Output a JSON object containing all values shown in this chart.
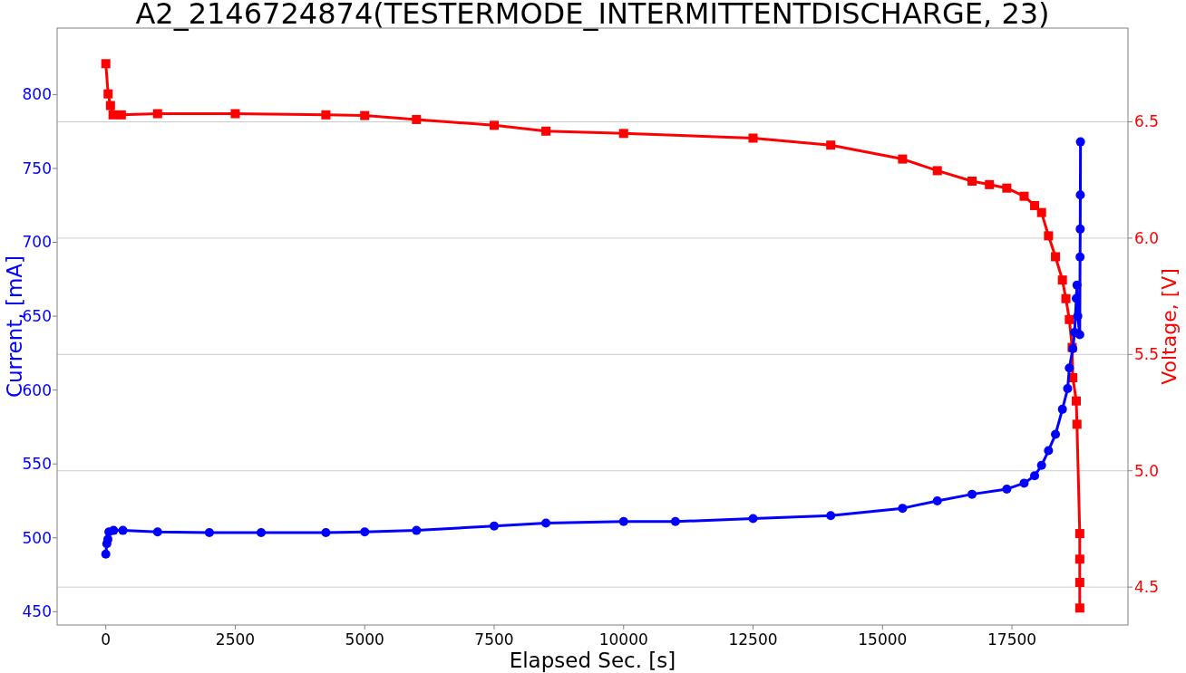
{
  "chart_data": {
    "type": "line",
    "title": "A2_2146724874(TESTERMODE_INTERMITTENTDISCHARGE, 23)",
    "xlabel": "Elapsed Sec. [s]",
    "ylabel": "Current, [mA]",
    "y2label": "Voltage, [V]",
    "xlim": [
      -940,
      19740
    ],
    "xticks": [
      0,
      2500,
      5000,
      7500,
      10000,
      12500,
      15000,
      17500
    ],
    "ylim": [
      441,
      845
    ],
    "yticks": [
      450,
      500,
      550,
      600,
      650,
      700,
      750,
      800
    ],
    "y2lim": [
      4.337,
      6.903
    ],
    "y2ticks": [
      4.5,
      {
        "value": 5.0,
        "label": "5.0"
      },
      5.5,
      {
        "value": 6.0,
        "label": "6.0"
      },
      6.5
    ],
    "grid": "y2",
    "series": [
      {
        "color": "#0000ff",
        "marker": "circle",
        "x": [
          0,
          20,
          40,
          60,
          150,
          330,
          1000,
          2000,
          3000,
          4250,
          5000,
          6000,
          7500,
          8500,
          10000,
          11000,
          12500,
          14000,
          15387,
          16058,
          16729,
          17400,
          17735,
          17937,
          18071,
          18205,
          18340,
          18474,
          18575,
          18608,
          18675,
          18709,
          18742,
          18755,
          18770,
          18809,
          18815,
          18818,
          18820,
          18823
        ],
        "values": [
          489,
          496,
          499,
          504,
          505,
          505,
          504,
          503.5,
          503.5,
          503.5,
          504,
          505,
          508,
          510,
          511,
          511,
          513,
          515,
          520,
          525,
          529.5,
          533,
          537,
          542,
          549,
          559,
          570,
          587,
          601,
          615,
          628,
          639,
          662,
          671,
          650,
          637.5,
          690,
          709,
          732,
          768
        ]
      },
      {
        "color": "#ff0000",
        "marker": "square",
        "axis": "y2",
        "x": [
          0,
          45,
          90,
          140,
          300,
          1000,
          2500,
          4250,
          5000,
          6000,
          7500,
          8500,
          10000,
          12500,
          14000,
          15387,
          16058,
          16729,
          17065,
          17400,
          17735,
          17937,
          18071,
          18205,
          18340,
          18474,
          18541,
          18608,
          18662,
          18675,
          18742,
          18755,
          18809,
          18809,
          18809,
          18809
        ],
        "values": [
          6.75,
          6.62,
          6.57,
          6.53,
          6.53,
          6.535,
          6.535,
          6.53,
          6.527,
          6.51,
          6.485,
          6.46,
          6.45,
          6.43,
          6.4,
          6.34,
          6.29,
          6.245,
          6.23,
          6.215,
          6.18,
          6.14,
          6.11,
          6.01,
          5.92,
          5.82,
          5.74,
          5.65,
          5.53,
          5.4,
          5.3,
          5.2,
          4.73,
          4.62,
          4.52,
          4.41
        ]
      }
    ]
  }
}
